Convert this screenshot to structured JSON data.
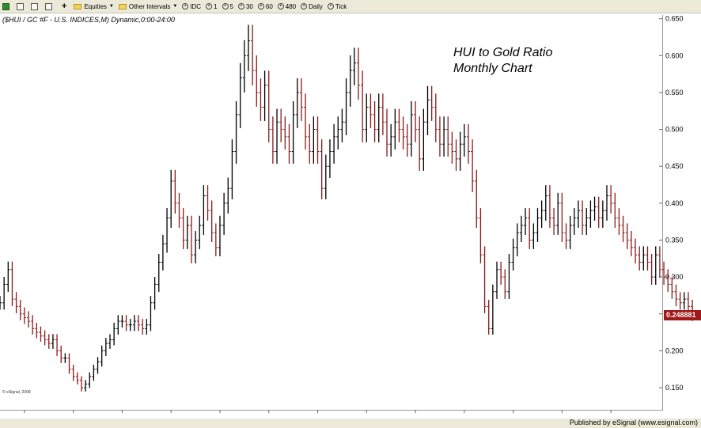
{
  "toolbar": {
    "items": [
      {
        "label": "Equities",
        "icon": "folder-icon",
        "caret": true
      },
      {
        "label": "Other Intervals",
        "icon": "folder-icon",
        "caret": true
      },
      {
        "label": "IDC",
        "icon": "clock-icon"
      },
      {
        "label": "1",
        "icon": "clock-icon"
      },
      {
        "label": "5",
        "icon": "clock-icon"
      },
      {
        "label": "30",
        "icon": "clock-icon"
      },
      {
        "label": "60",
        "icon": "clock-icon"
      },
      {
        "label": "480",
        "icon": "clock-icon"
      },
      {
        "label": "Daily",
        "icon": "clock-icon"
      },
      {
        "label": "Tick",
        "icon": "clock-icon"
      }
    ]
  },
  "status": {
    "text": "Published by eSignal (www.esignal.com)"
  },
  "chart_data": {
    "type": "bar",
    "style": "ohlc-monthly",
    "header": "($HUI / GC #F - U.S. INDICES,M) Dynamic,0:00-24:00",
    "title_lines": [
      "HUI to Gold Ratio",
      "Monthly Chart"
    ],
    "copyright": "© eSignal, 2008",
    "last_value_label": "0.248881",
    "last_value": 0.248881,
    "ylim": [
      0.12,
      0.655
    ],
    "yticks": [
      "0.650",
      "0.600",
      "0.550",
      "0.500",
      "0.450",
      "0.400",
      "0.350",
      "0.300",
      "0.250",
      "0.200",
      "0.150"
    ],
    "xlim": [
      1999.5,
      2013.05
    ],
    "xticks": [
      "2000",
      "2001",
      "2002",
      "2003",
      "2004",
      "2005",
      "2006",
      "2007",
      "2008",
      "2009",
      "2010",
      "2011",
      "2012"
    ],
    "up_color": "#000000",
    "down_color": "#8b1a1a",
    "grid": false,
    "series": [
      {
        "name": "",
        "start_year": 1999.5,
        "close": [
          0.265,
          0.29,
          0.31,
          0.27,
          0.26,
          0.25,
          0.245,
          0.24,
          0.23,
          0.225,
          0.22,
          0.215,
          0.21,
          0.215,
          0.2,
          0.19,
          0.19,
          0.175,
          0.165,
          0.16,
          0.15,
          0.155,
          0.165,
          0.175,
          0.185,
          0.2,
          0.21,
          0.215,
          0.23,
          0.24,
          0.24,
          0.235,
          0.235,
          0.24,
          0.235,
          0.23,
          0.235,
          0.265,
          0.29,
          0.32,
          0.345,
          0.38,
          0.43,
          0.4,
          0.38,
          0.35,
          0.37,
          0.33,
          0.35,
          0.37,
          0.41,
          0.39,
          0.36,
          0.34,
          0.37,
          0.4,
          0.42,
          0.47,
          0.52,
          0.57,
          0.6,
          0.62,
          0.58,
          0.55,
          0.53,
          0.56,
          0.5,
          0.47,
          0.51,
          0.5,
          0.49,
          0.47,
          0.52,
          0.55,
          0.53,
          0.49,
          0.47,
          0.5,
          0.47,
          0.42,
          0.45,
          0.47,
          0.49,
          0.5,
          0.51,
          0.55,
          0.58,
          0.59,
          0.56,
          0.5,
          0.53,
          0.52,
          0.5,
          0.53,
          0.51,
          0.48,
          0.49,
          0.51,
          0.5,
          0.49,
          0.48,
          0.52,
          0.5,
          0.46,
          0.51,
          0.54,
          0.53,
          0.5,
          0.48,
          0.5,
          0.48,
          0.47,
          0.46,
          0.48,
          0.49,
          0.47,
          0.43,
          0.38,
          0.33,
          0.26,
          0.23,
          0.28,
          0.31,
          0.3,
          0.28,
          0.32,
          0.34,
          0.36,
          0.37,
          0.38,
          0.35,
          0.36,
          0.38,
          0.39,
          0.41,
          0.38,
          0.37,
          0.4,
          0.36,
          0.35,
          0.37,
          0.38,
          0.39,
          0.37,
          0.38,
          0.39,
          0.395,
          0.38,
          0.39,
          0.41,
          0.4,
          0.38,
          0.37,
          0.36,
          0.35,
          0.34,
          0.33,
          0.32,
          0.33,
          0.32,
          0.3,
          0.33,
          0.31,
          0.3,
          0.29,
          0.28,
          0.27,
          0.265,
          0.27,
          0.26,
          0.249
        ]
      }
    ]
  }
}
